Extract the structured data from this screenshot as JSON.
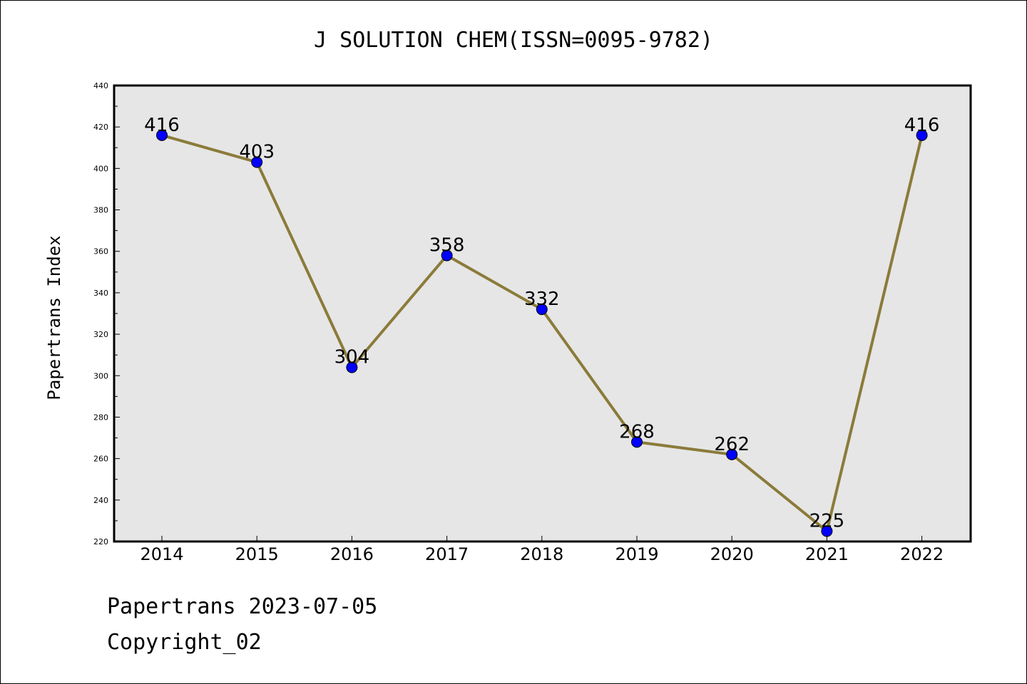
{
  "chart_data": {
    "type": "line",
    "title": "J SOLUTION CHEM(ISSN=0095-9782)",
    "xlabel": "",
    "ylabel": "Papertrans Index",
    "categories": [
      "2014",
      "2015",
      "2016",
      "2017",
      "2018",
      "2019",
      "2020",
      "2021",
      "2022"
    ],
    "values": [
      416,
      403,
      304,
      358,
      332,
      268,
      262,
      225,
      416
    ],
    "ylim": [
      220,
      440
    ],
    "yticks": [
      220,
      240,
      260,
      280,
      300,
      320,
      340,
      360,
      380,
      400,
      420,
      440
    ],
    "grid": false,
    "legend": "none",
    "colors": {
      "line": "#8b7b3a",
      "marker": "#0000ff",
      "plot_background": "#e6e6e6"
    }
  },
  "footer": {
    "line1": "Papertrans 2023-07-05",
    "line2": "Copyright_02"
  }
}
